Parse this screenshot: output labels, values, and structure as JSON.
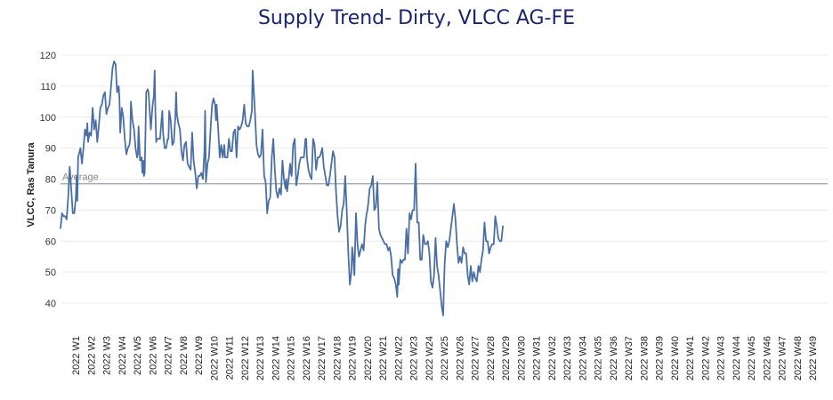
{
  "chart_data": {
    "type": "line",
    "title": "Supply Trend- Dirty, VLCC AG-FE",
    "xlabel": "",
    "ylabel": "VLCC, Ras Tanura",
    "ylim": [
      30,
      125
    ],
    "yticks": [
      40,
      50,
      60,
      70,
      80,
      90,
      100,
      110,
      120
    ],
    "grid": true,
    "x_categories": [
      "2022 W1",
      "2022 W2",
      "2022 W3",
      "2022 W4",
      "2022 W5",
      "2022 W6",
      "2022 W7",
      "2022 W8",
      "2022 W9",
      "2022 W10",
      "2022 W11",
      "2022 W12",
      "2022 W13",
      "2022 W14",
      "2022 W15",
      "2022 W16",
      "2022 W17",
      "2022 W18",
      "2022 W19",
      "2022 W20",
      "2022 W21",
      "2022 W22",
      "2022 W23",
      "2022 W24",
      "2022 W25",
      "2022 W26",
      "2022 W27",
      "2022 W28",
      "2022 W29",
      "2022 W30",
      "2022 W31",
      "2022 W32",
      "2022 W33",
      "2022 W34",
      "2022 W35",
      "2022 W36",
      "2022 W37",
      "2022 W38",
      "2022 W39",
      "2022 W40",
      "2022 W41",
      "2022 W42",
      "2022 W43",
      "2022 W44",
      "2022 W45",
      "2022 W46",
      "2022 W47",
      "2022 W48",
      "2022 W49"
    ],
    "reference_line": {
      "label": "Average",
      "value": 78.5
    },
    "series": [
      {
        "color": "#4a6fa5",
        "points": [
          [
            0.0,
            64
          ],
          [
            0.1,
            69
          ],
          [
            0.2,
            68
          ],
          [
            0.3,
            68
          ],
          [
            0.4,
            67
          ],
          [
            0.5,
            74
          ],
          [
            0.6,
            84
          ],
          [
            0.7,
            77
          ],
          [
            0.8,
            69
          ],
          [
            0.9,
            69
          ],
          [
            1.0,
            74
          ],
          [
            1.05,
            81
          ],
          [
            1.1,
            73
          ],
          [
            1.15,
            87
          ],
          [
            1.3,
            90
          ],
          [
            1.4,
            85
          ],
          [
            1.5,
            90
          ],
          [
            1.6,
            96
          ],
          [
            1.7,
            94
          ],
          [
            1.75,
            98
          ],
          [
            1.8,
            92
          ],
          [
            1.9,
            95
          ],
          [
            2.0,
            94
          ],
          [
            2.1,
            103
          ],
          [
            2.2,
            96
          ],
          [
            2.3,
            99
          ],
          [
            2.4,
            92
          ],
          [
            2.5,
            97
          ],
          [
            2.6,
            103
          ],
          [
            2.7,
            104
          ],
          [
            2.8,
            107
          ],
          [
            2.9,
            108
          ],
          [
            3.0,
            101
          ],
          [
            3.1,
            103
          ],
          [
            3.2,
            104
          ],
          [
            3.3,
            110
          ],
          [
            3.4,
            116
          ],
          [
            3.5,
            118
          ],
          [
            3.6,
            117
          ],
          [
            3.7,
            108
          ],
          [
            3.8,
            110
          ],
          [
            3.85,
            106
          ],
          [
            3.9,
            95
          ],
          [
            4.0,
            103
          ],
          [
            4.1,
            100
          ],
          [
            4.2,
            93
          ],
          [
            4.3,
            88
          ],
          [
            4.4,
            90
          ],
          [
            4.5,
            91
          ],
          [
            4.55,
            93
          ],
          [
            4.6,
            105
          ],
          [
            4.7,
            99
          ],
          [
            4.8,
            96
          ],
          [
            4.9,
            90
          ],
          [
            5.0,
            87
          ],
          [
            5.05,
            88
          ],
          [
            5.1,
            97
          ],
          [
            5.2,
            86
          ],
          [
            5.3,
            87
          ],
          [
            5.35,
            82
          ],
          [
            5.4,
            86
          ],
          [
            5.45,
            81
          ],
          [
            5.5,
            82
          ],
          [
            5.6,
            108
          ],
          [
            5.7,
            109
          ],
          [
            5.75,
            108
          ],
          [
            5.8,
            104
          ],
          [
            5.9,
            96
          ],
          [
            6.0,
            103
          ],
          [
            6.1,
            107
          ],
          [
            6.15,
            115
          ],
          [
            6.2,
            102
          ],
          [
            6.25,
            92
          ],
          [
            6.3,
            93
          ],
          [
            6.4,
            93
          ],
          [
            6.5,
            93
          ],
          [
            6.6,
            99
          ],
          [
            6.65,
            102
          ],
          [
            6.7,
            95
          ],
          [
            6.8,
            90
          ],
          [
            6.9,
            90
          ],
          [
            7.0,
            93
          ],
          [
            7.05,
            93
          ],
          [
            7.1,
            102
          ],
          [
            7.2,
            99
          ],
          [
            7.3,
            91
          ],
          [
            7.4,
            92
          ],
          [
            7.5,
            100
          ],
          [
            7.55,
            108
          ],
          [
            7.6,
            101
          ],
          [
            7.7,
            98
          ],
          [
            7.8,
            96
          ],
          [
            7.9,
            89
          ],
          [
            8.0,
            86
          ],
          [
            8.05,
            89
          ],
          [
            8.1,
            91
          ],
          [
            8.2,
            92
          ],
          [
            8.3,
            85
          ],
          [
            8.4,
            84
          ],
          [
            8.5,
            83
          ],
          [
            8.6,
            95
          ],
          [
            8.7,
            86
          ],
          [
            8.8,
            82
          ],
          [
            8.9,
            77
          ],
          [
            9.0,
            81
          ],
          [
            9.1,
            81
          ],
          [
            9.2,
            82
          ],
          [
            9.3,
            80
          ],
          [
            9.4,
            89
          ],
          [
            9.45,
            102
          ],
          [
            9.5,
            79
          ],
          [
            9.6,
            85
          ],
          [
            9.7,
            87
          ],
          [
            9.8,
            96
          ],
          [
            9.9,
            104
          ],
          [
            10.0,
            106
          ],
          [
            10.1,
            104
          ],
          [
            10.15,
            99
          ],
          [
            10.2,
            104
          ],
          [
            10.3,
            96
          ],
          [
            10.4,
            87
          ],
          [
            10.5,
            91
          ],
          [
            10.6,
            87
          ],
          [
            10.7,
            91
          ],
          [
            10.75,
            87
          ],
          [
            10.8,
            87
          ],
          [
            10.9,
            87
          ],
          [
            11.0,
            93
          ],
          [
            11.1,
            89
          ],
          [
            11.2,
            89
          ],
          [
            11.3,
            95
          ],
          [
            11.4,
            96
          ],
          [
            11.5,
            87
          ],
          [
            11.6,
            97
          ],
          [
            11.7,
            96
          ],
          [
            11.8,
            97
          ],
          [
            11.9,
            99
          ],
          [
            12.0,
            104
          ],
          [
            12.1,
            98
          ],
          [
            12.2,
            97
          ],
          [
            12.3,
            97
          ],
          [
            12.4,
            99
          ],
          [
            12.5,
            102
          ],
          [
            12.55,
            115
          ],
          [
            12.6,
            111
          ],
          [
            12.7,
            102
          ],
          [
            12.8,
            91
          ],
          [
            12.9,
            88
          ],
          [
            13.0,
            87
          ],
          [
            13.1,
            88
          ],
          [
            13.2,
            96
          ],
          [
            13.3,
            81
          ],
          [
            13.4,
            79
          ],
          [
            13.5,
            69
          ],
          [
            13.6,
            73
          ],
          [
            13.7,
            74
          ],
          [
            13.8,
            87
          ],
          [
            13.9,
            93
          ],
          [
            14.0,
            83
          ],
          [
            14.1,
            76
          ],
          [
            14.2,
            74
          ],
          [
            14.3,
            77
          ],
          [
            14.4,
            75
          ],
          [
            14.5,
            86
          ],
          [
            14.6,
            80
          ],
          [
            14.7,
            77
          ],
          [
            14.75,
            80
          ],
          [
            14.8,
            76
          ],
          [
            14.9,
            80
          ],
          [
            15.0,
            85
          ],
          [
            15.05,
            82
          ],
          [
            15.1,
            81
          ],
          [
            15.2,
            91
          ],
          [
            15.3,
            93
          ],
          [
            15.4,
            78
          ],
          [
            15.5,
            81
          ],
          [
            15.6,
            85
          ],
          [
            15.7,
            87
          ],
          [
            15.8,
            87
          ],
          [
            15.9,
            87
          ],
          [
            16.0,
            93
          ],
          [
            16.05,
            93
          ],
          [
            16.1,
            87
          ],
          [
            16.2,
            83
          ],
          [
            16.3,
            81
          ],
          [
            16.4,
            80
          ],
          [
            16.5,
            93
          ],
          [
            16.6,
            91
          ],
          [
            16.7,
            83
          ],
          [
            16.8,
            87
          ],
          [
            16.9,
            87
          ],
          [
            17.0,
            88
          ],
          [
            17.1,
            90
          ],
          [
            17.2,
            84
          ],
          [
            17.3,
            81
          ],
          [
            17.4,
            78
          ],
          [
            17.5,
            78
          ],
          [
            17.6,
            81
          ],
          [
            17.7,
            85
          ],
          [
            17.8,
            89
          ],
          [
            17.9,
            87
          ],
          [
            18.0,
            76
          ],
          [
            18.1,
            68
          ],
          [
            18.2,
            63
          ],
          [
            18.3,
            65
          ],
          [
            18.4,
            70
          ],
          [
            18.5,
            72
          ],
          [
            18.6,
            81
          ],
          [
            18.7,
            70
          ],
          [
            18.8,
            56
          ],
          [
            18.9,
            46
          ],
          [
            19.0,
            50
          ],
          [
            19.05,
            58
          ],
          [
            19.1,
            56
          ],
          [
            19.2,
            49
          ],
          [
            19.3,
            69
          ],
          [
            19.4,
            59
          ],
          [
            19.5,
            55
          ],
          [
            19.6,
            57
          ],
          [
            19.7,
            59
          ],
          [
            19.8,
            57
          ],
          [
            19.9,
            65
          ],
          [
            20.0,
            69
          ],
          [
            20.05,
            70
          ],
          [
            20.1,
            72
          ],
          [
            20.2,
            77
          ],
          [
            20.3,
            78
          ],
          [
            20.4,
            81
          ],
          [
            20.5,
            70
          ],
          [
            20.6,
            71
          ],
          [
            20.7,
            79
          ],
          [
            20.8,
            64
          ],
          [
            20.9,
            62
          ],
          [
            21.0,
            61
          ],
          [
            21.1,
            60
          ],
          [
            21.2,
            59
          ],
          [
            21.3,
            59
          ],
          [
            21.4,
            57
          ],
          [
            21.5,
            58
          ],
          [
            21.6,
            55
          ],
          [
            21.7,
            49
          ],
          [
            21.8,
            48
          ],
          [
            21.9,
            46
          ],
          [
            22.0,
            42
          ],
          [
            22.05,
            51
          ],
          [
            22.1,
            46
          ],
          [
            22.2,
            54
          ],
          [
            22.3,
            53
          ],
          [
            22.4,
            54
          ],
          [
            22.5,
            54
          ],
          [
            22.6,
            64
          ],
          [
            22.7,
            56
          ],
          [
            22.8,
            69
          ],
          [
            22.9,
            67
          ],
          [
            23.0,
            70
          ],
          [
            23.1,
            70
          ],
          [
            23.2,
            85
          ],
          [
            23.3,
            66
          ],
          [
            23.4,
            66
          ],
          [
            23.5,
            54
          ],
          [
            23.6,
            54
          ],
          [
            23.7,
            62
          ],
          [
            23.8,
            59
          ],
          [
            23.9,
            59
          ],
          [
            24.0,
            60
          ],
          [
            24.1,
            56
          ],
          [
            24.2,
            47
          ],
          [
            24.3,
            45
          ],
          [
            24.4,
            49
          ],
          [
            24.5,
            61
          ],
          [
            24.6,
            52
          ],
          [
            24.7,
            49
          ],
          [
            24.8,
            44
          ],
          [
            24.9,
            39
          ],
          [
            25.0,
            36
          ],
          [
            25.05,
            46
          ],
          [
            25.1,
            53
          ],
          [
            25.2,
            60
          ],
          [
            25.3,
            58
          ],
          [
            25.4,
            60
          ],
          [
            25.5,
            64
          ],
          [
            25.6,
            68
          ],
          [
            25.7,
            72
          ],
          [
            25.8,
            67
          ],
          [
            25.9,
            59
          ],
          [
            26.0,
            53
          ],
          [
            26.1,
            55
          ],
          [
            26.2,
            53
          ],
          [
            26.3,
            58
          ],
          [
            26.4,
            56
          ],
          [
            26.5,
            56
          ],
          [
            26.6,
            49
          ],
          [
            26.7,
            46
          ],
          [
            26.8,
            52
          ],
          [
            26.9,
            47
          ],
          [
            27.0,
            50
          ],
          [
            27.1,
            48
          ],
          [
            27.2,
            47
          ],
          [
            27.3,
            52
          ],
          [
            27.4,
            50
          ],
          [
            27.5,
            54
          ],
          [
            27.6,
            57
          ],
          [
            27.7,
            66
          ],
          [
            27.8,
            60
          ],
          [
            27.9,
            60
          ],
          [
            28.0,
            56
          ],
          [
            28.1,
            58
          ],
          [
            28.2,
            59
          ],
          [
            28.3,
            59
          ],
          [
            28.4,
            68
          ],
          [
            28.5,
            65
          ],
          [
            28.6,
            61
          ],
          [
            28.7,
            60
          ],
          [
            28.8,
            60
          ],
          [
            28.9,
            65
          ]
        ]
      }
    ]
  }
}
